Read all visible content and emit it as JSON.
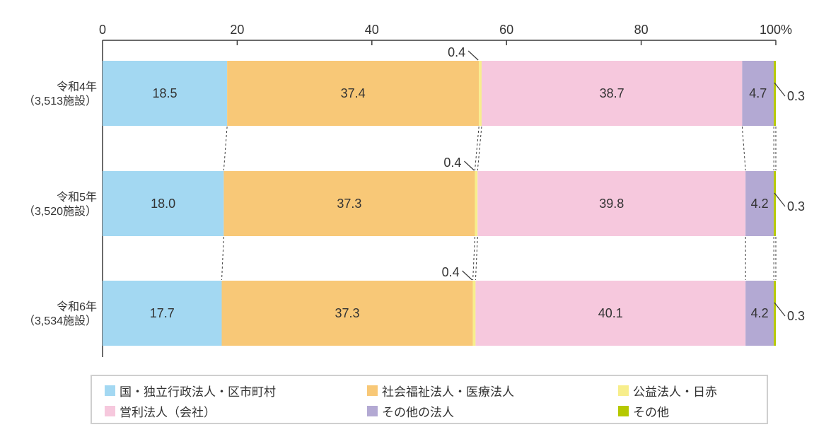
{
  "chart_data": {
    "type": "bar",
    "subtype": "horizontal-stacked-100pct",
    "title": "",
    "xlabel": "",
    "ylabel": "",
    "axis": {
      "min": 0,
      "max": 100,
      "unit": "%",
      "ticks": [
        {
          "value": 0,
          "label": "0"
        },
        {
          "value": 20,
          "label": "20"
        },
        {
          "value": 40,
          "label": "40"
        },
        {
          "value": 60,
          "label": "60"
        },
        {
          "value": 80,
          "label": "80"
        },
        {
          "value": 100,
          "label": "100%"
        }
      ]
    },
    "categories": [
      {
        "line1": "令和4年",
        "line2": "（3,513施設）"
      },
      {
        "line1": "令和5年",
        "line2": "（3,520施設）"
      },
      {
        "line1": "令和6年",
        "line2": "（3,534施設）"
      }
    ],
    "series": [
      {
        "name": "国・独立行政法人・区市町村",
        "color": "#A3D8F2",
        "values": [
          18.5,
          18.0,
          17.7
        ]
      },
      {
        "name": "社会福祉法人・医療法人",
        "color": "#F8C877",
        "values": [
          37.4,
          37.3,
          37.3
        ]
      },
      {
        "name": "公益法人・日赤",
        "color": "#F7EE8C",
        "values": [
          0.4,
          0.4,
          0.4
        ]
      },
      {
        "name": "営利法人（会社）",
        "color": "#F6C8DD",
        "values": [
          38.7,
          39.8,
          40.1
        ]
      },
      {
        "name": "その他の法人",
        "color": "#B3A9D3",
        "values": [
          4.7,
          4.2,
          4.2
        ]
      },
      {
        "name": "その他",
        "color": "#B5C800",
        "values": [
          0.3,
          0.3,
          0.3
        ]
      }
    ],
    "annotations": {
      "above_callout_series": 2,
      "right_callout_series": 5,
      "min_inline_label_value": 4
    },
    "legend_position": "bottom",
    "grid": false,
    "connectors": "dashed-between-bars"
  },
  "colors": {
    "axis": "#3a3a3a",
    "text": "#333333",
    "legend_border": "#cfcfcf"
  }
}
